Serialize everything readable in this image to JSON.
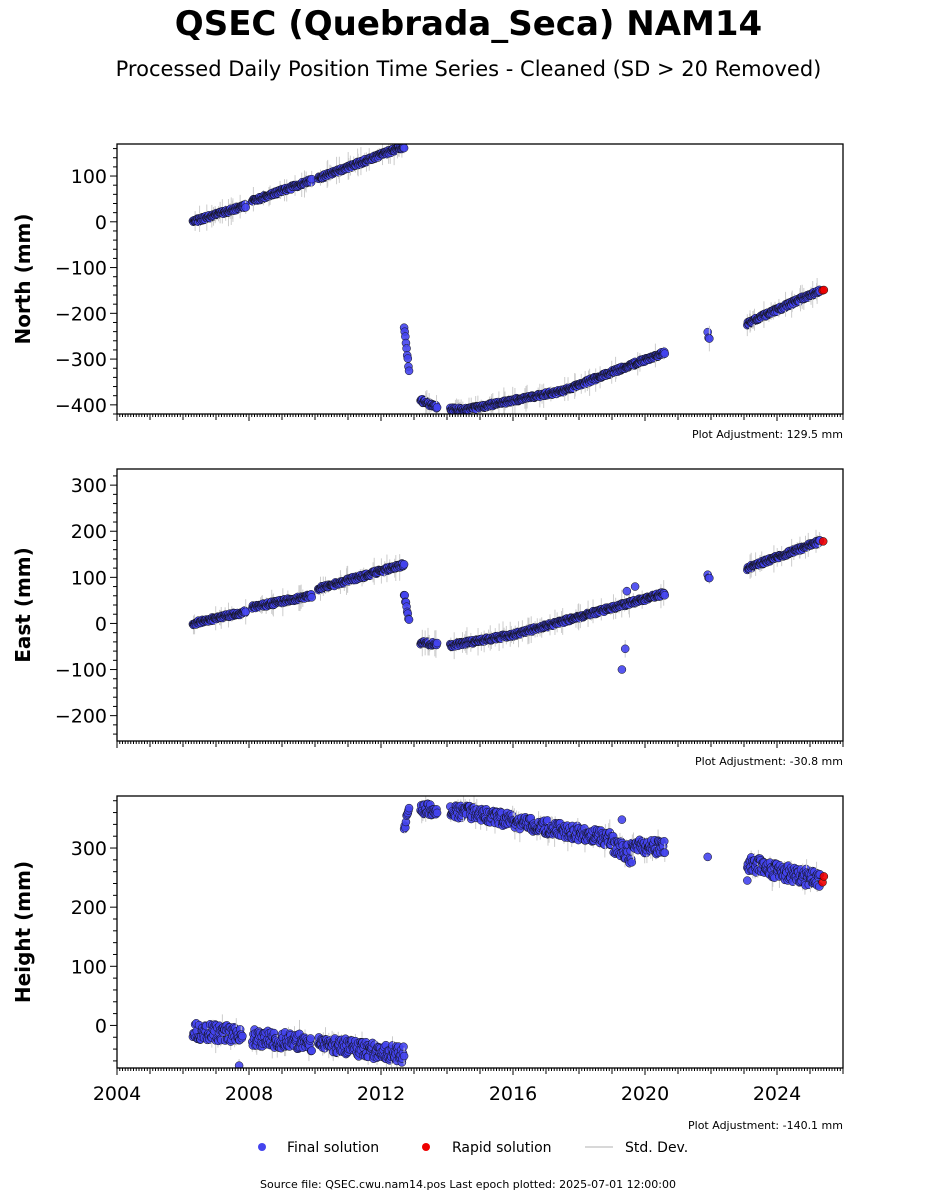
{
  "title": "QSEC (Quebrada_Seca) NAM14",
  "subtitle": "Processed Daily Position Time Series - Cleaned (SD > 20 Removed)",
  "colors": {
    "final": "#4444ee",
    "rapid": "#ee0000",
    "stddev": "#cccccc",
    "edge": "#111111"
  },
  "legend": {
    "final": "Final solution",
    "rapid": "Rapid solution",
    "stddev": "Std. Dev."
  },
  "source_text": "Source file: QSEC.cwu.nam14.pos  Last epoch plotted: 2025-07-01 12:00:00",
  "chart_data": [
    {
      "type": "scatter",
      "ylabel": "North (mm)",
      "adjustment": "Plot Adjustment: 129.5 mm",
      "xlim": [
        2004.0,
        2026.0
      ],
      "ylim": [
        -420,
        170
      ],
      "yticks": [
        100,
        0,
        -100,
        -200,
        -300,
        -400
      ],
      "x_tick_labels": false,
      "series": [
        {
          "name": "Final solution",
          "segments": [
            {
              "x0": 2006.3,
              "x1": 2007.9,
              "y0": 0,
              "y1": 35
            },
            {
              "x0": 2008.1,
              "x1": 2009.9,
              "y0": 45,
              "y1": 90
            },
            {
              "x0": 2010.1,
              "x1": 2012.7,
              "y0": 95,
              "y1": 165
            },
            {
              "x0": 2012.7,
              "x1": 2012.85,
              "y0": -230,
              "y1": -325
            },
            {
              "x0": 2013.2,
              "x1": 2013.7,
              "y0": -390,
              "y1": -405
            },
            {
              "x0": 2014.1,
              "x1": 2014.6,
              "y0": -410,
              "y1": -410
            },
            {
              "x0": 2014.6,
              "x1": 2017.5,
              "y0": -410,
              "y1": -370
            },
            {
              "x0": 2017.5,
              "x1": 2020.6,
              "y0": -370,
              "y1": -285
            },
            {
              "x0": 2021.9,
              "x1": 2021.95,
              "y0": -245,
              "y1": -255
            },
            {
              "x0": 2023.1,
              "x1": 2025.3,
              "y0": -222,
              "y1": -150
            }
          ]
        },
        {
          "name": "Rapid solution",
          "points": [
            [
              2025.38,
              -150
            ],
            [
              2025.42,
              -149
            ]
          ]
        }
      ]
    },
    {
      "type": "scatter",
      "ylabel": "East (mm)",
      "adjustment": "Plot Adjustment: -30.8 mm",
      "xlim": [
        2004.0,
        2026.0
      ],
      "ylim": [
        -255,
        335
      ],
      "yticks": [
        300,
        200,
        100,
        0,
        -100,
        -200
      ],
      "x_tick_labels": false,
      "series": [
        {
          "name": "Final solution",
          "segments": [
            {
              "x0": 2006.3,
              "x1": 2007.9,
              "y0": 0,
              "y1": 25
            },
            {
              "x0": 2008.1,
              "x1": 2009.9,
              "y0": 35,
              "y1": 60
            },
            {
              "x0": 2010.1,
              "x1": 2012.7,
              "y0": 75,
              "y1": 128
            },
            {
              "x0": 2012.7,
              "x1": 2012.85,
              "y0": 65,
              "y1": 5
            },
            {
              "x0": 2013.2,
              "x1": 2013.7,
              "y0": -42,
              "y1": -45
            },
            {
              "x0": 2014.1,
              "x1": 2016.0,
              "y0": -48,
              "y1": -25
            },
            {
              "x0": 2016.0,
              "x1": 2020.6,
              "y0": -25,
              "y1": 65
            },
            {
              "x0": 2021.9,
              "x1": 2021.95,
              "y0": 105,
              "y1": 100
            },
            {
              "x0": 2023.1,
              "x1": 2025.3,
              "y0": 120,
              "y1": 178
            }
          ],
          "outliers": [
            [
              2019.3,
              -100
            ],
            [
              2019.4,
              -55
            ],
            [
              2019.45,
              70
            ],
            [
              2019.7,
              80
            ]
          ]
        },
        {
          "name": "Rapid solution",
          "points": [
            [
              2025.4,
              178
            ]
          ]
        }
      ]
    },
    {
      "type": "scatter",
      "ylabel": "Height (mm)",
      "adjustment": "Plot Adjustment: -140.1 mm",
      "xlim": [
        2004.0,
        2026.0
      ],
      "ylim": [
        -72,
        388
      ],
      "yticks": [
        300,
        200,
        100,
        0
      ],
      "x_tick_labels": true,
      "xticks": [
        2004,
        2008,
        2012,
        2016,
        2020,
        2024
      ],
      "series": [
        {
          "name": "Final solution",
          "segments": [
            {
              "x0": 2006.3,
              "x1": 2007.8,
              "y0": -10,
              "y1": -15,
              "spread": 14
            },
            {
              "x0": 2008.1,
              "x1": 2009.9,
              "y0": -20,
              "y1": -30,
              "spread": 14
            },
            {
              "x0": 2010.1,
              "x1": 2012.7,
              "y0": -30,
              "y1": -50,
              "spread": 14
            },
            {
              "x0": 2012.7,
              "x1": 2012.85,
              "y0": 330,
              "y1": 375,
              "spread": 8
            },
            {
              "x0": 2013.2,
              "x1": 2013.7,
              "y0": 365,
              "y1": 365,
              "spread": 10
            },
            {
              "x0": 2014.1,
              "x1": 2019.0,
              "y0": 365,
              "y1": 315,
              "spread": 12
            },
            {
              "x0": 2019.0,
              "x1": 2019.6,
              "y0": 310,
              "y1": 290,
              "spread": 18
            },
            {
              "x0": 2019.6,
              "x1": 2020.6,
              "y0": 305,
              "y1": 300,
              "spread": 12
            },
            {
              "x0": 2023.1,
              "x1": 2025.3,
              "y0": 275,
              "y1": 245,
              "spread": 14
            }
          ],
          "outliers": [
            [
              2007.7,
              -68
            ],
            [
              2021.9,
              285
            ],
            [
              2019.3,
              348
            ],
            [
              2023.1,
              245
            ]
          ]
        },
        {
          "name": "Rapid solution",
          "points": [
            [
              2025.38,
              242
            ],
            [
              2025.42,
              252
            ]
          ]
        }
      ]
    }
  ]
}
